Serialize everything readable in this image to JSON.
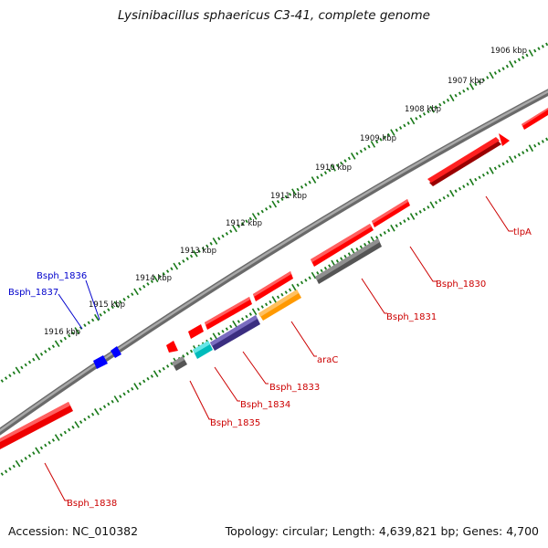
{
  "title": "Lysinibacillus sphaericus C3-41, complete genome",
  "footer": {
    "accession": "Accession: NC_010382",
    "topology": "Topology: circular; Length: 4,639,821 bp; Genes: 4,700"
  },
  "colors": {
    "backbone": "#888888",
    "tick_ruler": "#1a7a1a",
    "label_red": "#cc0000",
    "label_blue": "#0000cc"
  },
  "ruler_labels": [
    "1906 kbp",
    "1907 kbp",
    "1908 kbp",
    "1909 kbp",
    "1910 kbp",
    "1911 kbp",
    "1912 kbp",
    "1913 kbp",
    "1914 kbp",
    "1915 kbp",
    "1916 kbp"
  ],
  "genes": [
    {
      "label": "tlpA",
      "strand": "forward",
      "color": "#ff0000",
      "label_color": "red"
    },
    {
      "label": "Bsph_1830",
      "strand": "forward",
      "color": "#ff0000",
      "label_color": "red"
    },
    {
      "label": "Bsph_1831",
      "strand": "reverse",
      "color": "#666666",
      "label_color": "red"
    },
    {
      "label": "araC",
      "strand": "reverse",
      "color": "#ff9900",
      "label_color": "red"
    },
    {
      "label": "Bsph_1833",
      "strand": "reverse",
      "color": "#443388",
      "label_color": "red"
    },
    {
      "label": "Bsph_1834",
      "strand": "reverse",
      "color": "#00cccc",
      "label_color": "red"
    },
    {
      "label": "Bsph_1835",
      "strand": "reverse",
      "color": "#666666",
      "label_color": "red"
    },
    {
      "label": "Bsph_1836",
      "strand": "forward",
      "color": "#0000ff",
      "label_color": "blue"
    },
    {
      "label": "Bsph_1837",
      "strand": "forward",
      "color": "#0000ff",
      "label_color": "blue"
    },
    {
      "label": "Bsph_1838",
      "strand": "forward",
      "color": "#ff0000",
      "label_color": "red"
    }
  ]
}
